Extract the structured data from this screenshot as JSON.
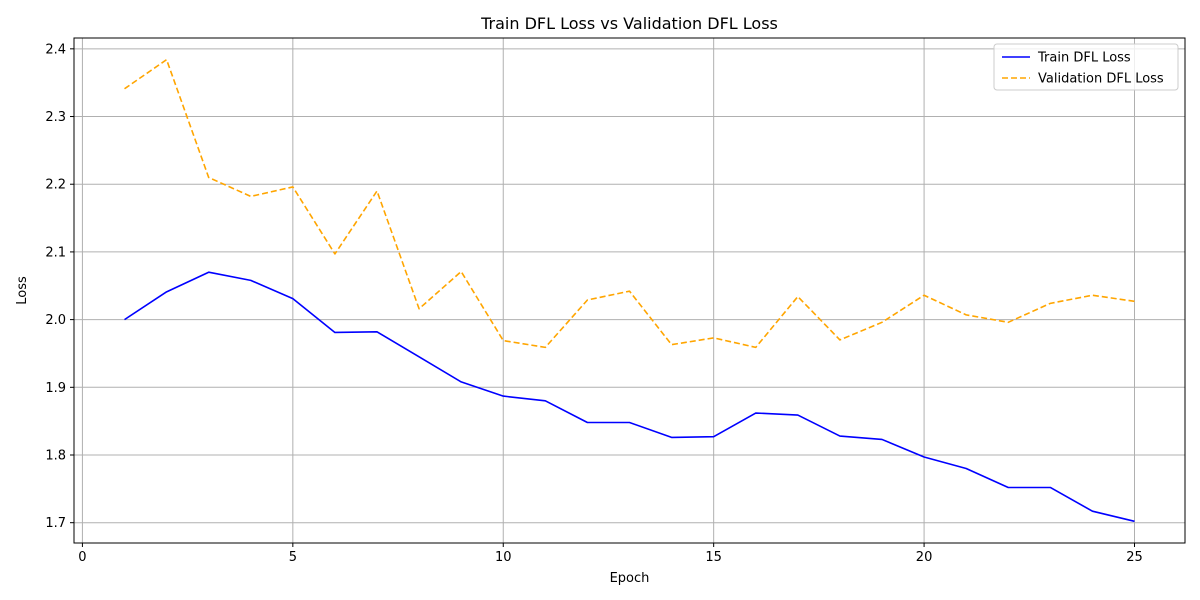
{
  "chart_data": {
    "type": "line",
    "title": "Train DFL Loss vs Validation DFL Loss",
    "xlabel": "Epoch",
    "ylabel": "Loss",
    "xlim": [
      -0.2,
      26.2
    ],
    "ylim": [
      1.67,
      2.416
    ],
    "xticks": [
      0,
      5,
      10,
      15,
      20,
      25
    ],
    "yticks": [
      1.7,
      1.8,
      1.9,
      2.0,
      2.1,
      2.2,
      2.3,
      2.4
    ],
    "xtick_labels": [
      "0",
      "5",
      "10",
      "15",
      "20",
      "25"
    ],
    "ytick_labels": [
      "1.7",
      "1.8",
      "1.9",
      "2.0",
      "2.1",
      "2.2",
      "2.3",
      "2.4"
    ],
    "grid": true,
    "legend_position": "top-right",
    "x": [
      1,
      2,
      3,
      4,
      5,
      6,
      7,
      8,
      9,
      10,
      11,
      12,
      13,
      14,
      15,
      16,
      17,
      18,
      19,
      20,
      21,
      22,
      23,
      24,
      25
    ],
    "series": [
      {
        "name": "Train DFL Loss",
        "color": "#0000ff",
        "dash": "solid",
        "values": [
          2.0,
          2.041,
          2.07,
          2.058,
          2.031,
          1.981,
          1.982,
          1.945,
          1.908,
          1.887,
          1.88,
          1.848,
          1.848,
          1.826,
          1.827,
          1.862,
          1.859,
          1.828,
          1.823,
          1.797,
          1.78,
          1.752,
          1.752,
          1.717,
          1.702
        ]
      },
      {
        "name": "Validation DFL Loss",
        "color": "#ffa500",
        "dash": "dashed",
        "values": [
          2.341,
          2.384,
          2.21,
          2.182,
          2.196,
          2.097,
          2.19,
          2.016,
          2.071,
          1.969,
          1.959,
          2.029,
          2.042,
          1.963,
          1.973,
          1.959,
          2.034,
          1.97,
          1.996,
          2.036,
          2.007,
          1.996,
          2.024,
          2.036,
          2.027
        ]
      }
    ]
  }
}
